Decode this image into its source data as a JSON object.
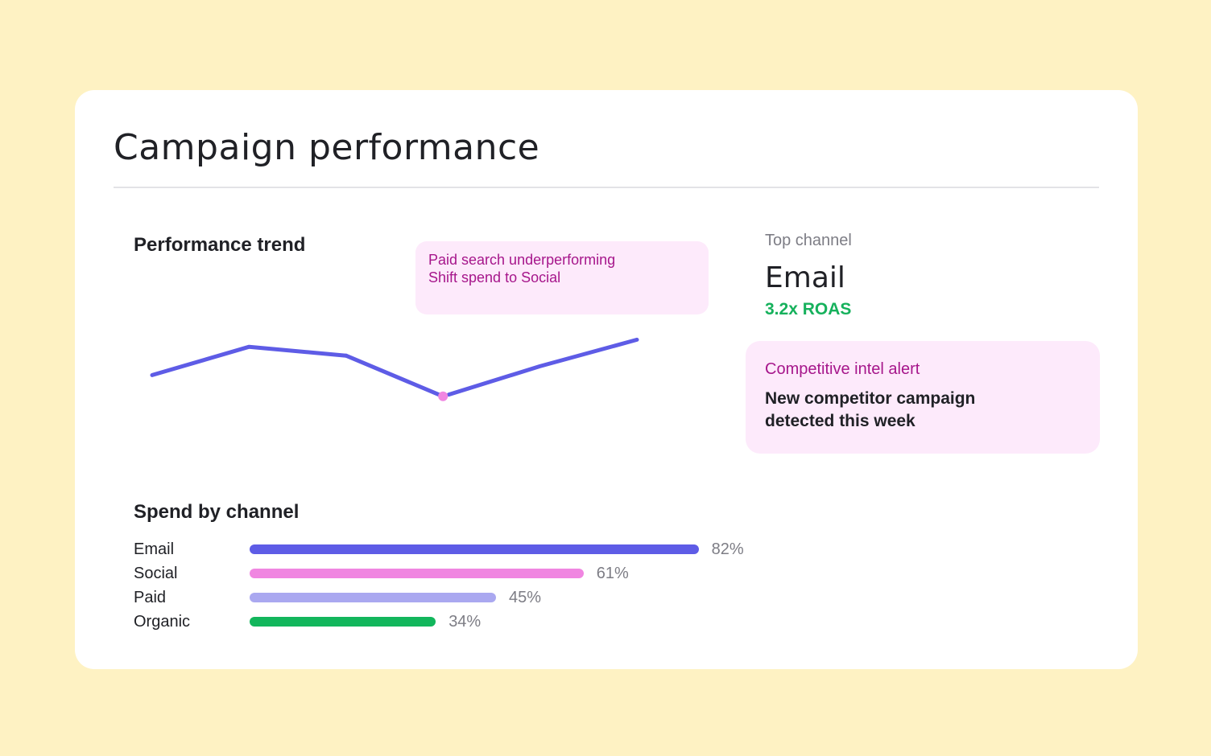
{
  "card": {
    "title": "Campaign performance"
  },
  "trend": {
    "title": "Performance trend",
    "annotation": {
      "line1": "Paid search underperforming",
      "line2": "Shift spend to Social"
    }
  },
  "top_channel": {
    "label": "Top channel",
    "value": "Email",
    "metric": "3.2x ROAS"
  },
  "alert": {
    "title": "Competitive intel alert",
    "body": "New competitor campaign detected this week"
  },
  "spend": {
    "title": "Spend by channel",
    "rows": [
      {
        "label": "Email",
        "value_text": "82%",
        "value": 82,
        "color": "#5E5CE6"
      },
      {
        "label": "Social",
        "value_text": "61%",
        "value": 61,
        "color": "#F086E1"
      },
      {
        "label": "Paid",
        "value_text": "45%",
        "value": 45,
        "color": "#AAA8F0"
      },
      {
        "label": "Organic",
        "value_text": "34%",
        "value": 34,
        "color": "#12B65C"
      }
    ]
  },
  "colors": {
    "background": "#FEF2C3",
    "line": "#5E5CE6",
    "highlight_point": "#F086E1",
    "accent_green": "#16B15C",
    "callout_bg": "#FDEAFB",
    "callout_text": "#A6168B"
  },
  "chart_data": [
    {
      "type": "line",
      "title": "Performance trend",
      "x": [
        1,
        2,
        3,
        4,
        5,
        6
      ],
      "series": [
        {
          "values": [
            48,
            64,
            59,
            36,
            53,
            68
          ]
        }
      ],
      "highlight_index": 3,
      "ylim": [
        0,
        100
      ],
      "grid": false,
      "axes_visible": false
    },
    {
      "type": "bar",
      "orientation": "horizontal",
      "title": "Spend by channel",
      "categories": [
        "Email",
        "Social",
        "Paid",
        "Organic"
      ],
      "values": [
        82,
        61,
        45,
        34
      ],
      "unit": "%",
      "xlim": [
        0,
        100
      ]
    }
  ]
}
